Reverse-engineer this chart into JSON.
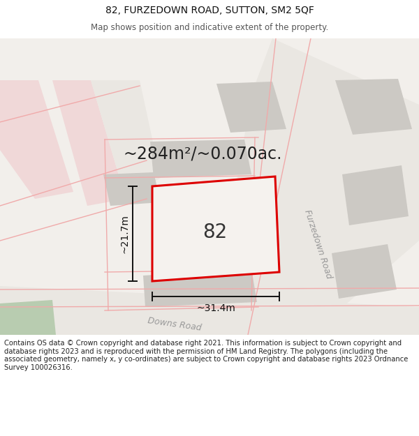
{
  "title": "82, FURZEDOWN ROAD, SUTTON, SM2 5QF",
  "subtitle": "Map shows position and indicative extent of the property.",
  "area_text": "~284m²/~0.070ac.",
  "label_82": "82",
  "dim_width": "~31.4m",
  "dim_height": "~21.7m",
  "road1": "Furzedown Road",
  "road2": "Downs Road",
  "footer": "Contains OS data © Crown copyright and database right 2021. This information is subject to Crown copyright and database rights 2023 and is reproduced with the permission of HM Land Registry. The polygons (including the associated geometry, namely x, y co-ordinates) are subject to Crown copyright and database rights 2023 Ordnance Survey 100026316.",
  "map_bg": "#f2efeb",
  "building_fill": "#ccc9c4",
  "building_fill2": "#d5d2cc",
  "red_color": "#dd0000",
  "pink_line": "#f0aaaa",
  "pink_fill": "#f0d8d8",
  "road_fill": "#e8e5e0",
  "green_fill": "#b8ccb0",
  "footer_bg": "#ffffff",
  "footer_fontsize": 7.2,
  "title_fontsize": 10,
  "subtitle_fontsize": 8.5,
  "area_fontsize": 17,
  "label_fontsize": 20,
  "dim_fontsize": 10,
  "road_fontsize": 9
}
